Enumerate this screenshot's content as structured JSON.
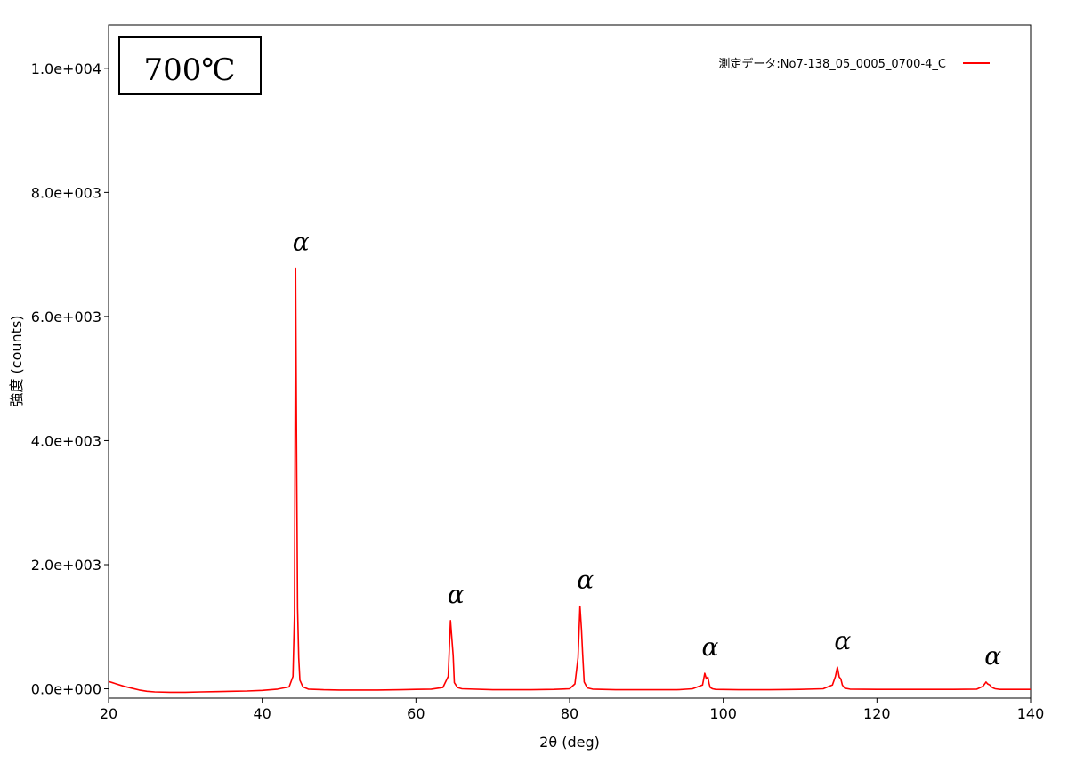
{
  "chart_data": {
    "type": "line",
    "title": "",
    "annotation_box": "700℃",
    "xlabel": "2θ (deg)",
    "ylabel": "強度 (counts)",
    "xlim": [
      20,
      140
    ],
    "ylim": [
      -150,
      10700
    ],
    "x_ticks": [
      20,
      40,
      60,
      80,
      100,
      120,
      140
    ],
    "x_tick_labels": [
      "20",
      "40",
      "60",
      "80",
      "100",
      "120",
      "140"
    ],
    "y_ticks": [
      0,
      2000,
      4000,
      6000,
      8000,
      10000
    ],
    "y_tick_labels": [
      "0.0e+000",
      "2.0e+003",
      "4.0e+003",
      "6.0e+003",
      "8.0e+003",
      "1.0e+004"
    ],
    "grid": false,
    "legend_position": "top-right",
    "series": [
      {
        "name": "測定データ:No7-138_05_0005_0700-4_C",
        "color": "#ff0000",
        "x": [
          20,
          21,
          22,
          23,
          24,
          25,
          26,
          28,
          30,
          32,
          34,
          36,
          38,
          40,
          42,
          43.5,
          44.0,
          44.2,
          44.35,
          44.5,
          44.6,
          44.75,
          44.9,
          45.3,
          46,
          48,
          50,
          52,
          55,
          58,
          60,
          62,
          63.5,
          64.2,
          64.5,
          64.7,
          64.85,
          65.0,
          65.4,
          66,
          70,
          75,
          78,
          80,
          80.7,
          81.1,
          81.35,
          81.55,
          81.7,
          81.9,
          82.3,
          83,
          86,
          90,
          94,
          96,
          97.3,
          97.6,
          97.8,
          98.0,
          98.15,
          98.3,
          98.6,
          99,
          102,
          106,
          110,
          113,
          114.2,
          114.6,
          114.85,
          115.1,
          115.3,
          115.5,
          115.8,
          116.5,
          120,
          125,
          130,
          133,
          133.8,
          134.2,
          134.4,
          134.7,
          134.9,
          135.1,
          135.4,
          136,
          138,
          140
        ],
        "y": [
          120,
          80,
          40,
          10,
          -20,
          -40,
          -50,
          -55,
          -55,
          -50,
          -45,
          -40,
          -35,
          -25,
          -5,
          30,
          200,
          1200,
          6780,
          3380,
          1300,
          500,
          140,
          30,
          -5,
          -15,
          -20,
          -20,
          -20,
          -15,
          -10,
          -5,
          20,
          200,
          1100,
          780,
          540,
          100,
          20,
          0,
          -15,
          -15,
          -10,
          0,
          80,
          500,
          1330,
          950,
          560,
          110,
          15,
          -5,
          -15,
          -15,
          -15,
          0,
          60,
          250,
          160,
          190,
          90,
          20,
          0,
          -10,
          -15,
          -15,
          -10,
          0,
          60,
          200,
          350,
          190,
          160,
          60,
          10,
          -5,
          -10,
          -10,
          -10,
          -5,
          40,
          110,
          80,
          60,
          30,
          15,
          0,
          -10,
          -10,
          -10
        ]
      }
    ],
    "peak_labels": [
      {
        "text": "α",
        "x": 44.35,
        "y": 6780
      },
      {
        "text": "α",
        "x": 64.5,
        "y": 1100
      },
      {
        "text": "α",
        "x": 81.35,
        "y": 1330
      },
      {
        "text": "α",
        "x": 97.6,
        "y": 250
      },
      {
        "text": "α",
        "x": 114.85,
        "y": 350
      },
      {
        "text": "α",
        "x": 134.4,
        "y": 110
      }
    ]
  }
}
